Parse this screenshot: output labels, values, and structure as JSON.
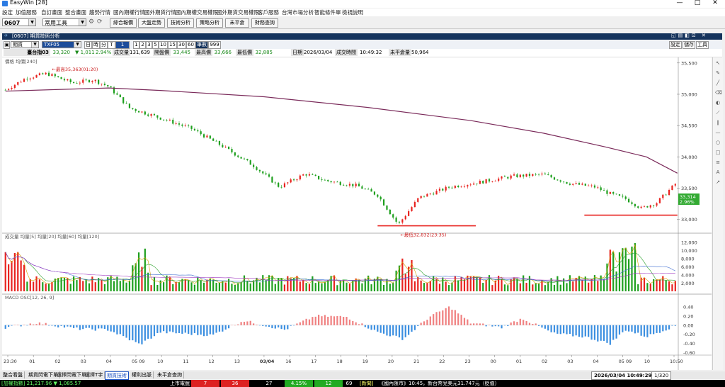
{
  "window": {
    "title": "EasyWin  [28]",
    "min": "—",
    "max": "□",
    "close": "✕"
  },
  "menu": [
    "設定",
    "加值服務",
    "自訂畫面",
    "整合畫面",
    "趨勢行情",
    "國內期權行情",
    "國外期貨行情",
    "國內期權交易權限",
    "國外期貨交易權限",
    "客戶服務",
    "台灣市場分析",
    "智能條件單",
    "檢視說明"
  ],
  "toolbar": {
    "code": "0607",
    "tools_combo": "常用工具",
    "buttons": [
      "綜合報價",
      "大盤走勢",
      "技術分析",
      "策略分析",
      "未平倉",
      "財務查詢"
    ]
  },
  "panel": {
    "title": "[0607] 期貨技術分析"
  },
  "charttools": {
    "period_combo": "期貨",
    "symbol": "TXF05",
    "time_buttons": [
      "日",
      "時",
      "分",
      "T"
    ],
    "minute_value": "1",
    "interval_buttons": [
      "1",
      "2",
      "3",
      "5",
      "10",
      "15",
      "30",
      "60"
    ],
    "count_label": "筆數",
    "count_value": "999",
    "right_buttons": [
      "設定",
      "儲存",
      "工具"
    ]
  },
  "quote": {
    "name": "臺台指03",
    "price": "33,320",
    "change": "▼ 1,011",
    "pct": "2.94%",
    "vol_label": "成交量",
    "vol": "131,639",
    "open_label": "開盤價",
    "open": "33,445",
    "high_label": "最高價",
    "high": "33,666",
    "low_label": "最低價",
    "low": "32,885",
    "date_label": "日期",
    "date": "2026/03/04",
    "time_label": "成交時間",
    "time": "10:49:32",
    "oi_label": "未平倉量",
    "oi": "50,964"
  },
  "colors": {
    "up": "#e8231f",
    "down": "#1fa01f",
    "ma": "#7a2a5a",
    "line": "#e8231f",
    "macd_up": "#f08080",
    "macd_down": "#3a8ee0",
    "panel": "#15335c"
  },
  "chart_data": {
    "type": "candlestick",
    "price": {
      "legend": "價格  均價[240]",
      "yticks": [
        "35,500",
        "35,000",
        "34,500",
        "34,000",
        "33,500",
        "33,000"
      ],
      "ylim": [
        32850,
        35520
      ],
      "high_annot": "←最高35,363(01:20)",
      "low_annot": "←最低32,832(23:35)",
      "last_price": "33,314",
      "last_change": "2.96%"
    },
    "volume": {
      "legend": "成交量  均量[5]  均量[20]  均量[60]  均量[120]",
      "yticks": [
        "12,000",
        "10,000",
        "8,000",
        "6,000",
        "4,000",
        "2,000"
      ],
      "ylim": [
        0,
        12500
      ]
    },
    "macd": {
      "legend": "MACD OSC[12, 26, 9]",
      "yticks": [
        "0.40",
        "0.20",
        "0.00",
        "-0.20",
        "-0.40",
        "-0.60"
      ],
      "ylim": [
        -0.62,
        0.52
      ]
    },
    "xticks": [
      "23:30",
      "01",
      "02",
      "03",
      "04",
      "05 09",
      "10",
      "11",
      "12",
      "13",
      "03/04",
      "16",
      "17",
      "18",
      "19",
      "20",
      "21",
      "22",
      "23",
      "00",
      "01",
      "02",
      "03",
      "04",
      "05 09",
      "10",
      "10:50"
    ],
    "anchors_price": [
      [
        0,
        35070
      ],
      [
        20,
        35260
      ],
      [
        40,
        35330
      ],
      [
        65,
        35180
      ],
      [
        85,
        35230
      ],
      [
        100,
        35120
      ],
      [
        120,
        34780
      ],
      [
        150,
        34620
      ],
      [
        180,
        34450
      ],
      [
        210,
        34170
      ],
      [
        240,
        33860
      ],
      [
        265,
        33520
      ],
      [
        290,
        33730
      ],
      [
        310,
        33620
      ],
      [
        340,
        33540
      ],
      [
        360,
        33390
      ],
      [
        380,
        32920
      ],
      [
        400,
        33350
      ],
      [
        430,
        33520
      ],
      [
        460,
        33600
      ],
      [
        490,
        33690
      ],
      [
        520,
        33720
      ],
      [
        545,
        33580
      ],
      [
        570,
        33520
      ],
      [
        585,
        33410
      ],
      [
        600,
        33330
      ],
      [
        615,
        33180
      ],
      [
        630,
        33270
      ],
      [
        650,
        33600
      ]
    ],
    "ma_price": [
      [
        0,
        35050
      ],
      [
        100,
        35100
      ],
      [
        150,
        35060
      ],
      [
        250,
        34960
      ],
      [
        350,
        34790
      ],
      [
        450,
        34580
      ],
      [
        520,
        34380
      ],
      [
        580,
        34160
      ],
      [
        620,
        34000
      ],
      [
        650,
        33740
      ]
    ]
  },
  "tabs": [
    "整合看盤",
    "期貨閃電下單",
    "選擇閃電下單",
    "選擇T字",
    "期貨技術",
    "權利出脈",
    "未平倉查詢"
  ],
  "status": {
    "datetime": "2026/03/04 10:49:29",
    "zoom": "1/320"
  },
  "ticker": [
    "[加權指數] 21,217.96 ▼ 1,085.57",
    "上市電脫",
    "7",
    "36",
    "27",
    "4.15%",
    "12",
    "69",
    "[新聞]",
    "《國內匯市》10:45，新台幣兌美元31.747元（貶值）"
  ]
}
